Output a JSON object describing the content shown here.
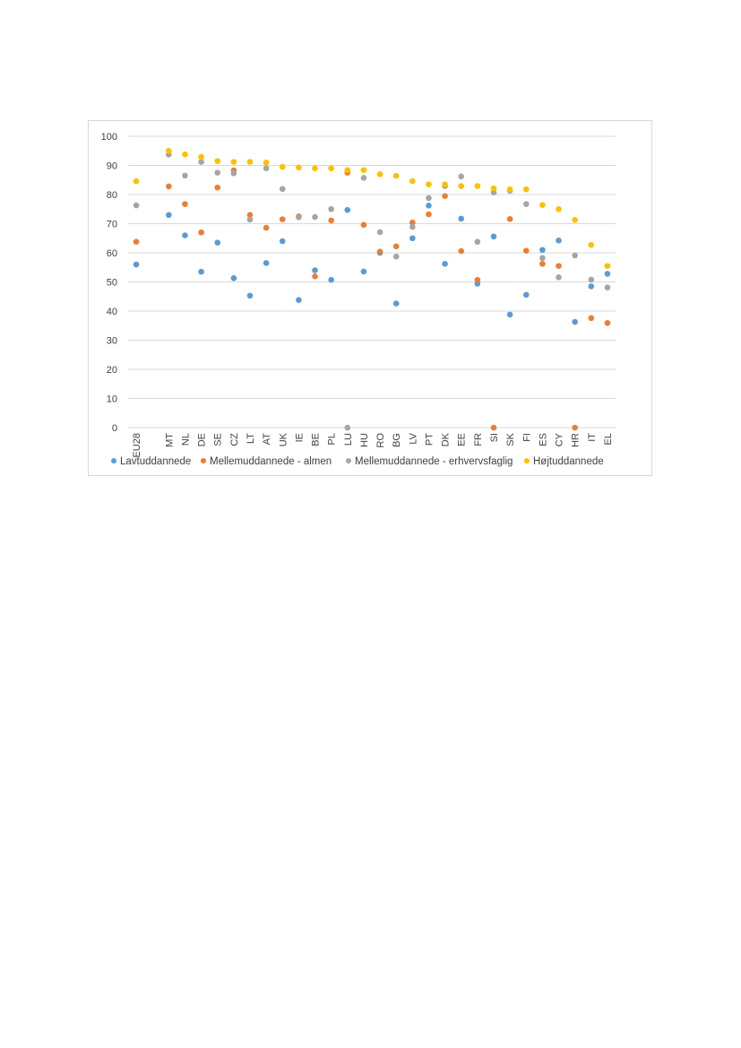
{
  "chart_data": {
    "type": "scatter",
    "title": "",
    "xlabel": "",
    "ylabel": "",
    "ylim": [
      0,
      100
    ],
    "yticks": [
      0,
      10,
      20,
      30,
      40,
      50,
      60,
      70,
      80,
      90,
      100
    ],
    "grid": "horizontal",
    "legend_position": "bottom",
    "categories": [
      "EU28",
      "",
      "MT",
      "NL",
      "DE",
      "SE",
      "CZ",
      "LT",
      "AT",
      "UK",
      "IE",
      "BE",
      "PL",
      "LU",
      "HU",
      "RO",
      "BG",
      "LV",
      "PT",
      "DK",
      "EE",
      "FR",
      "SI",
      "SK",
      "FI",
      "ES",
      "CY",
      "HR",
      "IT",
      "EL"
    ],
    "series": [
      {
        "name": "Lavtuddannede",
        "color": "#5b9bd5",
        "values": [
          56,
          null,
          73,
          66,
          53.5,
          63.5,
          51.3,
          45.3,
          56.5,
          64,
          43.8,
          54,
          50.7,
          74.7,
          53.6,
          60,
          42.6,
          65,
          76.2,
          56.2,
          71.7,
          49.4,
          65.6,
          38.8,
          45.6,
          61,
          64.2,
          36.3,
          48.5,
          52.8
        ]
      },
      {
        "name": "Mellemuddannede - almen",
        "color": "#ed7d31",
        "values": [
          63.8,
          null,
          82.8,
          76.7,
          67,
          82.4,
          88.3,
          73,
          68.6,
          71.5,
          72.5,
          51.9,
          71.1,
          87.5,
          69.6,
          60.4,
          62.2,
          70.4,
          73.2,
          79.5,
          60.6,
          50.7,
          0,
          71.6,
          60.7,
          56.2,
          55.5,
          0,
          37.6,
          35.9
        ]
      },
      {
        "name": "Mellemuddannede - erhvervsfaglig",
        "color": "#a5a5a5",
        "values": [
          76.3,
          null,
          93.7,
          86.5,
          91.2,
          87.5,
          87.3,
          71.4,
          89,
          81.9,
          72.2,
          72.3,
          75,
          0,
          85.7,
          67.1,
          58.7,
          68.9,
          78.8,
          82.9,
          86.2,
          63.8,
          80.7,
          81.3,
          76.7,
          58.2,
          51.6,
          59.1,
          50.8,
          48.1
        ]
      },
      {
        "name": "Højtuddannede",
        "color": "#ffc000",
        "values": [
          84.6,
          null,
          95,
          93.8,
          92.9,
          91.5,
          91.2,
          91.2,
          91,
          89.5,
          89.3,
          89,
          89,
          88.4,
          88.4,
          87,
          86.4,
          84.6,
          83.5,
          83.5,
          82.9,
          82.9,
          82.1,
          81.8,
          81.8,
          76.4,
          75,
          71.3,
          62.7,
          55.5
        ]
      }
    ]
  }
}
